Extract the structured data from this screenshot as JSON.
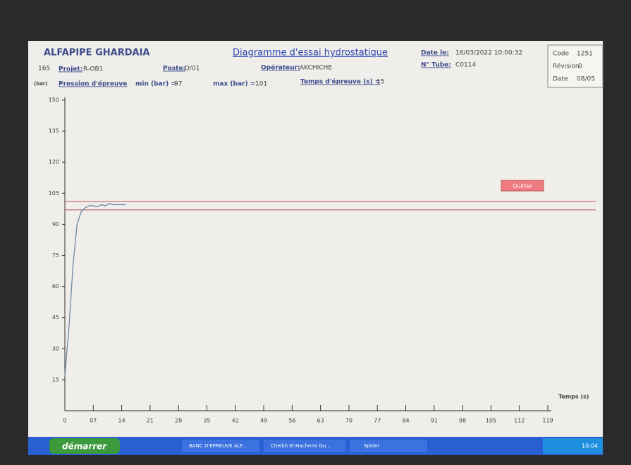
{
  "header": {
    "company": "ALFAPIPE GHARDAIA",
    "title": "Diagramme d'essai hydrostatique",
    "date_label": "Date le:",
    "date": "16/03/2022 10:00:32",
    "tube_label": "N° Tube:",
    "tube": "C0114",
    "side": "165",
    "projet_label": "Projet:",
    "projet": "R-OB1",
    "poste_label": "Poste:",
    "poste": "D/01",
    "operateur_label": "Opérateur:",
    "operateur": "AKCHICHE",
    "pression_label": "Pression d'épreuve",
    "min_label": "min (bar) =",
    "min": 97,
    "max_label": "max (bar) =",
    "max": 101,
    "temps_label": "Temps d'épreuve (s) =",
    "temps": 15
  },
  "code_box": {
    "code_label": "Code",
    "code": "1251",
    "revision_label": "Révision",
    "revision": "0",
    "date_label": "Date",
    "date": "08/05"
  },
  "button": "Quitter",
  "taskbar": {
    "start": "démarrer",
    "items": [
      "BANC D'EPREUVE ALF...",
      "Cheikh El-Hachemi Gu...",
      "Spider"
    ],
    "clock": "10:04"
  },
  "chart_data": {
    "type": "line",
    "y_label": "(bar)",
    "x_label": "Temps (s)",
    "x": [
      0,
      1,
      2,
      3,
      4,
      5,
      6,
      7,
      8,
      9,
      10,
      11,
      12,
      13,
      15
    ],
    "series": [
      {
        "color": "#6f86a8",
        "values": [
          17,
          40,
          70,
          90,
          96,
          98,
          99,
          99,
          98.5,
          99.5,
          99,
          100,
          99.5,
          99.5,
          99.5
        ]
      }
    ],
    "xlim": [
      0,
      119
    ],
    "ylim": [
      0,
      150
    ],
    "xticks": [
      0,
      {
        "value": 7,
        "label": "07"
      },
      14,
      21,
      28,
      35,
      42,
      49,
      56,
      63,
      70,
      77,
      84,
      91,
      98,
      105,
      112,
      119
    ],
    "yticks": [
      15,
      30,
      45,
      60,
      75,
      90,
      105,
      120,
      135,
      150
    ],
    "limit_color": "#c05060"
  }
}
